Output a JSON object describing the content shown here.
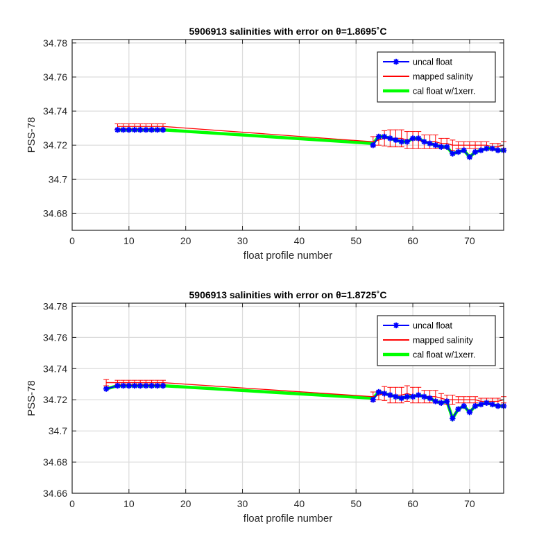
{
  "chart_data": [
    {
      "type": "line",
      "title": "5906913 salinities with error on θ=1.8695˚C",
      "xlabel": "float profile number",
      "ylabel": "PSS-78",
      "xlim": [
        0,
        76
      ],
      "ylim": [
        34.67,
        34.782
      ],
      "xticks": [
        0,
        10,
        20,
        30,
        40,
        50,
        60,
        70
      ],
      "yticks": [
        34.68,
        34.7,
        34.72,
        34.74,
        34.76,
        34.78
      ],
      "ytick_labels": [
        "34.68",
        "34.7",
        "34.72",
        "34.74",
        "34.76",
        "34.78"
      ],
      "grid": true,
      "legend_position": "top-right",
      "colors": {
        "uncal": "#0000ff",
        "mapped": "#ff0000",
        "cal": "#00ff00"
      },
      "series": [
        {
          "name": "uncal float",
          "x": [
            8,
            9,
            10,
            11,
            12,
            13,
            14,
            15,
            16,
            53,
            54,
            55,
            56,
            57,
            58,
            59,
            60,
            61,
            62,
            63,
            64,
            65,
            66,
            67,
            68,
            69,
            70,
            71,
            72,
            73,
            74,
            75,
            76
          ],
          "y": [
            34.729,
            34.729,
            34.729,
            34.729,
            34.729,
            34.729,
            34.729,
            34.729,
            34.729,
            34.72,
            34.725,
            34.725,
            34.724,
            34.723,
            34.722,
            34.722,
            34.724,
            34.724,
            34.722,
            34.721,
            34.72,
            34.719,
            34.719,
            34.715,
            34.716,
            34.717,
            34.713,
            34.716,
            34.717,
            34.718,
            34.718,
            34.717,
            34.717
          ]
        },
        {
          "name": "mapped salinity",
          "x": [
            8,
            9,
            10,
            11,
            12,
            13,
            14,
            15,
            16,
            53,
            54,
            55,
            56,
            57,
            58,
            59,
            60,
            61,
            62,
            63,
            64,
            65,
            66,
            67,
            68,
            69,
            70,
            71,
            72,
            73,
            74,
            75,
            76
          ],
          "y": [
            34.731,
            34.731,
            34.731,
            34.731,
            34.731,
            34.731,
            34.731,
            34.731,
            34.731,
            34.722,
            34.723,
            34.724,
            34.724,
            34.724,
            34.724,
            34.723,
            34.723,
            34.723,
            34.722,
            34.722,
            34.722,
            34.721,
            34.721,
            34.72,
            34.72,
            34.72,
            34.72,
            34.72,
            34.72,
            34.72,
            34.719,
            34.719,
            34.72
          ],
          "err": [
            0.0015,
            0.0015,
            0.0015,
            0.0015,
            0.0015,
            0.0015,
            0.0015,
            0.0015,
            0.0015,
            0.003,
            0.003,
            0.0045,
            0.005,
            0.005,
            0.005,
            0.005,
            0.005,
            0.005,
            0.004,
            0.004,
            0.004,
            0.003,
            0.003,
            0.003,
            0.002,
            0.002,
            0.002,
            0.002,
            0.002,
            0.002,
            0.002,
            0.002,
            0.002
          ]
        },
        {
          "name": "cal float w/1xerr.",
          "x": [
            8,
            9,
            10,
            11,
            12,
            13,
            14,
            15,
            16,
            53,
            54,
            55,
            56,
            57,
            58,
            59,
            60,
            61,
            62,
            63,
            64,
            65,
            66,
            67,
            68,
            69,
            70,
            71,
            72,
            73,
            74,
            75,
            76
          ],
          "y": [
            34.729,
            34.729,
            34.729,
            34.729,
            34.729,
            34.729,
            34.729,
            34.729,
            34.729,
            34.721,
            34.725,
            34.725,
            34.724,
            34.723,
            34.722,
            34.722,
            34.724,
            34.724,
            34.722,
            34.721,
            34.72,
            34.719,
            34.719,
            34.715,
            34.716,
            34.717,
            34.713,
            34.716,
            34.717,
            34.718,
            34.718,
            34.717,
            34.717
          ]
        }
      ]
    },
    {
      "type": "line",
      "title": "5906913 salinities with error on θ=1.8725˚C",
      "xlabel": "float profile number",
      "ylabel": "PSS-78",
      "xlim": [
        0,
        76
      ],
      "ylim": [
        34.66,
        34.782
      ],
      "xticks": [
        0,
        10,
        20,
        30,
        40,
        50,
        60,
        70
      ],
      "yticks": [
        34.66,
        34.68,
        34.7,
        34.72,
        34.74,
        34.76,
        34.78
      ],
      "ytick_labels": [
        "34.66",
        "34.68",
        "34.7",
        "34.72",
        "34.74",
        "34.76",
        "34.78"
      ],
      "grid": true,
      "legend_position": "top-right",
      "colors": {
        "uncal": "#0000ff",
        "mapped": "#ff0000",
        "cal": "#00ff00"
      },
      "series": [
        {
          "name": "uncal float",
          "x": [
            6,
            8,
            9,
            10,
            11,
            12,
            13,
            14,
            15,
            16,
            53,
            54,
            55,
            56,
            57,
            58,
            59,
            60,
            61,
            62,
            63,
            64,
            65,
            66,
            67,
            68,
            69,
            70,
            71,
            72,
            73,
            74,
            75,
            76
          ],
          "y": [
            34.727,
            34.729,
            34.729,
            34.729,
            34.729,
            34.729,
            34.729,
            34.729,
            34.729,
            34.729,
            34.72,
            34.725,
            34.724,
            34.723,
            34.722,
            34.721,
            34.722,
            34.722,
            34.723,
            34.722,
            34.721,
            34.719,
            34.718,
            34.719,
            34.708,
            34.714,
            34.716,
            34.712,
            34.716,
            34.717,
            34.718,
            34.717,
            34.716,
            34.716
          ]
        },
        {
          "name": "mapped salinity",
          "x": [
            6,
            8,
            9,
            10,
            11,
            12,
            13,
            14,
            15,
            16,
            53,
            54,
            55,
            56,
            57,
            58,
            59,
            60,
            61,
            62,
            63,
            64,
            65,
            66,
            67,
            68,
            69,
            70,
            71,
            72,
            73,
            74,
            75,
            76
          ],
          "y": [
            34.731,
            34.731,
            34.731,
            34.731,
            34.731,
            34.731,
            34.731,
            34.731,
            34.731,
            34.731,
            34.722,
            34.723,
            34.724,
            34.723,
            34.723,
            34.723,
            34.724,
            34.723,
            34.723,
            34.722,
            34.722,
            34.722,
            34.721,
            34.72,
            34.72,
            34.72,
            34.72,
            34.72,
            34.72,
            34.719,
            34.719,
            34.719,
            34.719,
            34.72
          ],
          "err": [
            0.002,
            0.0015,
            0.0015,
            0.0015,
            0.0015,
            0.0015,
            0.0015,
            0.0015,
            0.0015,
            0.0015,
            0.003,
            0.003,
            0.0045,
            0.005,
            0.005,
            0.005,
            0.005,
            0.005,
            0.005,
            0.004,
            0.004,
            0.004,
            0.003,
            0.003,
            0.003,
            0.002,
            0.002,
            0.002,
            0.002,
            0.002,
            0.002,
            0.002,
            0.002,
            0.002
          ]
        },
        {
          "name": "cal float w/1xerr.",
          "x": [
            6,
            8,
            9,
            10,
            11,
            12,
            13,
            14,
            15,
            16,
            53,
            54,
            55,
            56,
            57,
            58,
            59,
            60,
            61,
            62,
            63,
            64,
            65,
            66,
            67,
            68,
            69,
            70,
            71,
            72,
            73,
            74,
            75,
            76
          ],
          "y": [
            34.727,
            34.729,
            34.729,
            34.729,
            34.729,
            34.729,
            34.729,
            34.729,
            34.729,
            34.729,
            34.721,
            34.725,
            34.724,
            34.723,
            34.722,
            34.721,
            34.722,
            34.722,
            34.723,
            34.722,
            34.721,
            34.719,
            34.718,
            34.719,
            34.708,
            34.714,
            34.716,
            34.712,
            34.716,
            34.717,
            34.718,
            34.717,
            34.716,
            34.716
          ]
        }
      ]
    }
  ]
}
